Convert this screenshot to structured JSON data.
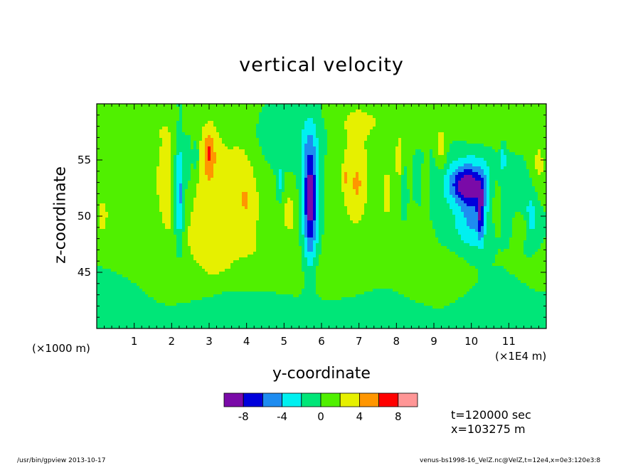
{
  "chart_data": {
    "type": "heatmap",
    "title": "vertical velocity",
    "xlabel": "y-coordinate",
    "ylabel": "z-coordinate",
    "x_axis": {
      "range": [
        0,
        12
      ],
      "ticks": [
        1,
        2,
        3,
        4,
        5,
        6,
        7,
        8,
        9,
        10,
        11
      ],
      "tick_labels": [
        "1",
        "2",
        "3",
        "4",
        "5",
        "6",
        "7",
        "8",
        "9",
        "10",
        "11"
      ],
      "unit_left": "(×1000 m)",
      "unit_right": "(×1E4 m)"
    },
    "y_axis": {
      "range": [
        40,
        60
      ],
      "ticks": [
        45,
        50,
        55
      ],
      "tick_labels": [
        "45",
        "50",
        "55"
      ]
    },
    "colorbar": {
      "levels": [
        -10,
        -8,
        -6,
        -4,
        -2,
        0,
        2,
        4,
        6,
        8,
        10
      ],
      "colors": [
        "#7a0aa8",
        "#0000dc",
        "#1e8cf0",
        "#00f0f0",
        "#00e678",
        "#50f000",
        "#e6f000",
        "#ff9600",
        "#ff0000",
        "#ff9696"
      ],
      "tick_values": [
        -8,
        -4,
        0,
        4,
        8
      ],
      "tick_labels": [
        "-8",
        "-4",
        "0",
        "4",
        "8"
      ]
    },
    "background_color": "#00e678",
    "features": [
      {
        "y": 1.9,
        "z": 53.5,
        "sy": 0.3,
        "sz": 3.5,
        "a": 3
      },
      {
        "y": 2.2,
        "z": 52.0,
        "sy": 0.1,
        "sz": 3.5,
        "a": -6.5
      },
      {
        "y": 2.45,
        "z": 55.0,
        "sy": 0.06,
        "sz": 1.5,
        "a": -3
      },
      {
        "y": 2.65,
        "z": 55.2,
        "sy": 0.06,
        "sz": 1.3,
        "a": -3
      },
      {
        "y": 3.0,
        "z": 53.0,
        "sy": 0.32,
        "sz": 4.5,
        "a": 3.5
      },
      {
        "y": 3.0,
        "z": 55.8,
        "sy": 0.1,
        "sz": 1.2,
        "a": 3.5
      },
      {
        "y": 3.85,
        "z": 53.0,
        "sy": 0.35,
        "sz": 4.0,
        "a": 3
      },
      {
        "y": 4.05,
        "z": 51.2,
        "sy": 0.2,
        "sz": 1.5,
        "a": 1.5
      },
      {
        "y": 5.15,
        "z": 50.5,
        "sy": 0.15,
        "sz": 1.5,
        "a": 2.5
      },
      {
        "y": 4.9,
        "z": 53.0,
        "sy": 0.05,
        "sz": 1.2,
        "a": -2.8
      },
      {
        "y": 5.7,
        "z": 51.5,
        "sy": 0.14,
        "sz": 4.0,
        "a": -9.5
      },
      {
        "y": 6.9,
        "z": 53.5,
        "sy": 0.38,
        "sz": 4.5,
        "a": 3
      },
      {
        "y": 6.65,
        "z": 53.5,
        "sy": 0.06,
        "sz": 0.6,
        "a": 2.2
      },
      {
        "y": 6.95,
        "z": 52.8,
        "sy": 0.07,
        "sz": 0.9,
        "a": 2.2
      },
      {
        "y": 8.1,
        "z": 55.0,
        "sy": 0.12,
        "sz": 1.8,
        "a": 3
      },
      {
        "y": 7.75,
        "z": 52.0,
        "sy": 0.1,
        "sz": 2.0,
        "a": 2.5
      },
      {
        "y": 8.2,
        "z": 52.5,
        "sy": 0.05,
        "sz": 2.0,
        "a": -3
      },
      {
        "y": 8.8,
        "z": 53.0,
        "sy": 0.05,
        "sz": 1.5,
        "a": 2.5
      },
      {
        "y": 9.2,
        "z": 56.0,
        "sy": 0.1,
        "sz": 1.4,
        "a": 3
      },
      {
        "y": 10.0,
        "z": 52.8,
        "sy": 0.55,
        "sz": 2.0,
        "a": -4
      },
      {
        "y": 9.85,
        "z": 52.8,
        "sy": 0.3,
        "sz": 1.0,
        "a": -5.5
      },
      {
        "y": 10.25,
        "z": 50.2,
        "sy": 0.06,
        "sz": 1.8,
        "a": -5
      },
      {
        "y": 10.05,
        "z": 50.0,
        "sy": 0.25,
        "sz": 2.2,
        "a": -3
      },
      {
        "y": 10.65,
        "z": 52.0,
        "sy": 0.12,
        "sz": 2.0,
        "a": 2.5
      },
      {
        "y": 10.85,
        "z": 55.2,
        "sy": 0.05,
        "sz": 1.0,
        "a": -3
      },
      {
        "y": 11.35,
        "z": 49.0,
        "sy": 0.12,
        "sz": 0.8,
        "a": 2.5
      },
      {
        "y": 11.6,
        "z": 50.0,
        "sy": 0.15,
        "sz": 2.0,
        "a": -2.8
      },
      {
        "y": 11.8,
        "z": 54.5,
        "sy": 0.15,
        "sz": 2.0,
        "a": 2.5
      },
      {
        "y": 0.15,
        "z": 50.0,
        "sy": 0.12,
        "sz": 1.5,
        "a": 2.5
      },
      {
        "y": 0.8,
        "z": 51.0,
        "sy": 0.35,
        "sz": 3.0,
        "a": 1.5
      },
      {
        "y": 2.5,
        "z": 48.0,
        "sy": 0.6,
        "sz": 2.0,
        "a": 1.5
      },
      {
        "y": 4.5,
        "z": 47.0,
        "sy": 0.8,
        "sz": 2.0,
        "a": 1.5
      },
      {
        "y": 6.3,
        "z": 44.5,
        "sy": 0.6,
        "sz": 1.5,
        "a": 1.6
      },
      {
        "y": 2.0,
        "z": 44.0,
        "sy": 0.6,
        "sz": 1.5,
        "a": 1.5
      },
      {
        "y": 9.0,
        "z": 45.0,
        "sy": 0.7,
        "sz": 1.6,
        "a": 1.5
      },
      {
        "y": 1.0,
        "z": 58.0,
        "sy": 0.7,
        "sz": 1.0,
        "a": 1.4
      },
      {
        "y": 7.5,
        "z": 58.5,
        "sy": 0.8,
        "sz": 1.0,
        "a": 1.4
      },
      {
        "y": 10.5,
        "z": 57.5,
        "sy": 0.8,
        "sz": 1.0,
        "a": 1.4
      },
      {
        "y": 8.5,
        "z": 48.5,
        "sy": 0.5,
        "sz": 1.2,
        "a": 1.5
      },
      {
        "y": 0.6,
        "z": 42.0,
        "sy": 0.8,
        "sz": 1.5,
        "a": -1.3
      },
      {
        "y": 3.5,
        "z": 41.5,
        "sy": 1.0,
        "sz": 1.2,
        "a": -1.3
      },
      {
        "y": 7.0,
        "z": 41.5,
        "sy": 1.0,
        "sz": 1.3,
        "a": -1.3
      },
      {
        "y": 11.0,
        "z": 42.0,
        "sy": 0.8,
        "sz": 1.5,
        "a": -1.3
      },
      {
        "y": 5.0,
        "z": 57.0,
        "sy": 0.8,
        "sz": 1.5,
        "a": -1.2
      },
      {
        "y": 9.5,
        "z": 48.5,
        "sy": 0.6,
        "sz": 1.3,
        "a": -1.2
      },
      {
        "y": 3.3,
        "z": 45.5,
        "sy": 0.3,
        "sz": 1.0,
        "a": 1.0
      },
      {
        "y": 11.8,
        "z": 45.0,
        "sy": 0.4,
        "sz": 1.5,
        "a": 1.0
      }
    ]
  },
  "info": {
    "time": "t=120000 sec",
    "xpos": "x=103275 m"
  },
  "footer": {
    "left": "/usr/bin/gpview   2013-10-17",
    "right": "venus-bs1998-16_VelZ.nc@VelZ,t=12e4,x=0e3:120e3:8"
  }
}
